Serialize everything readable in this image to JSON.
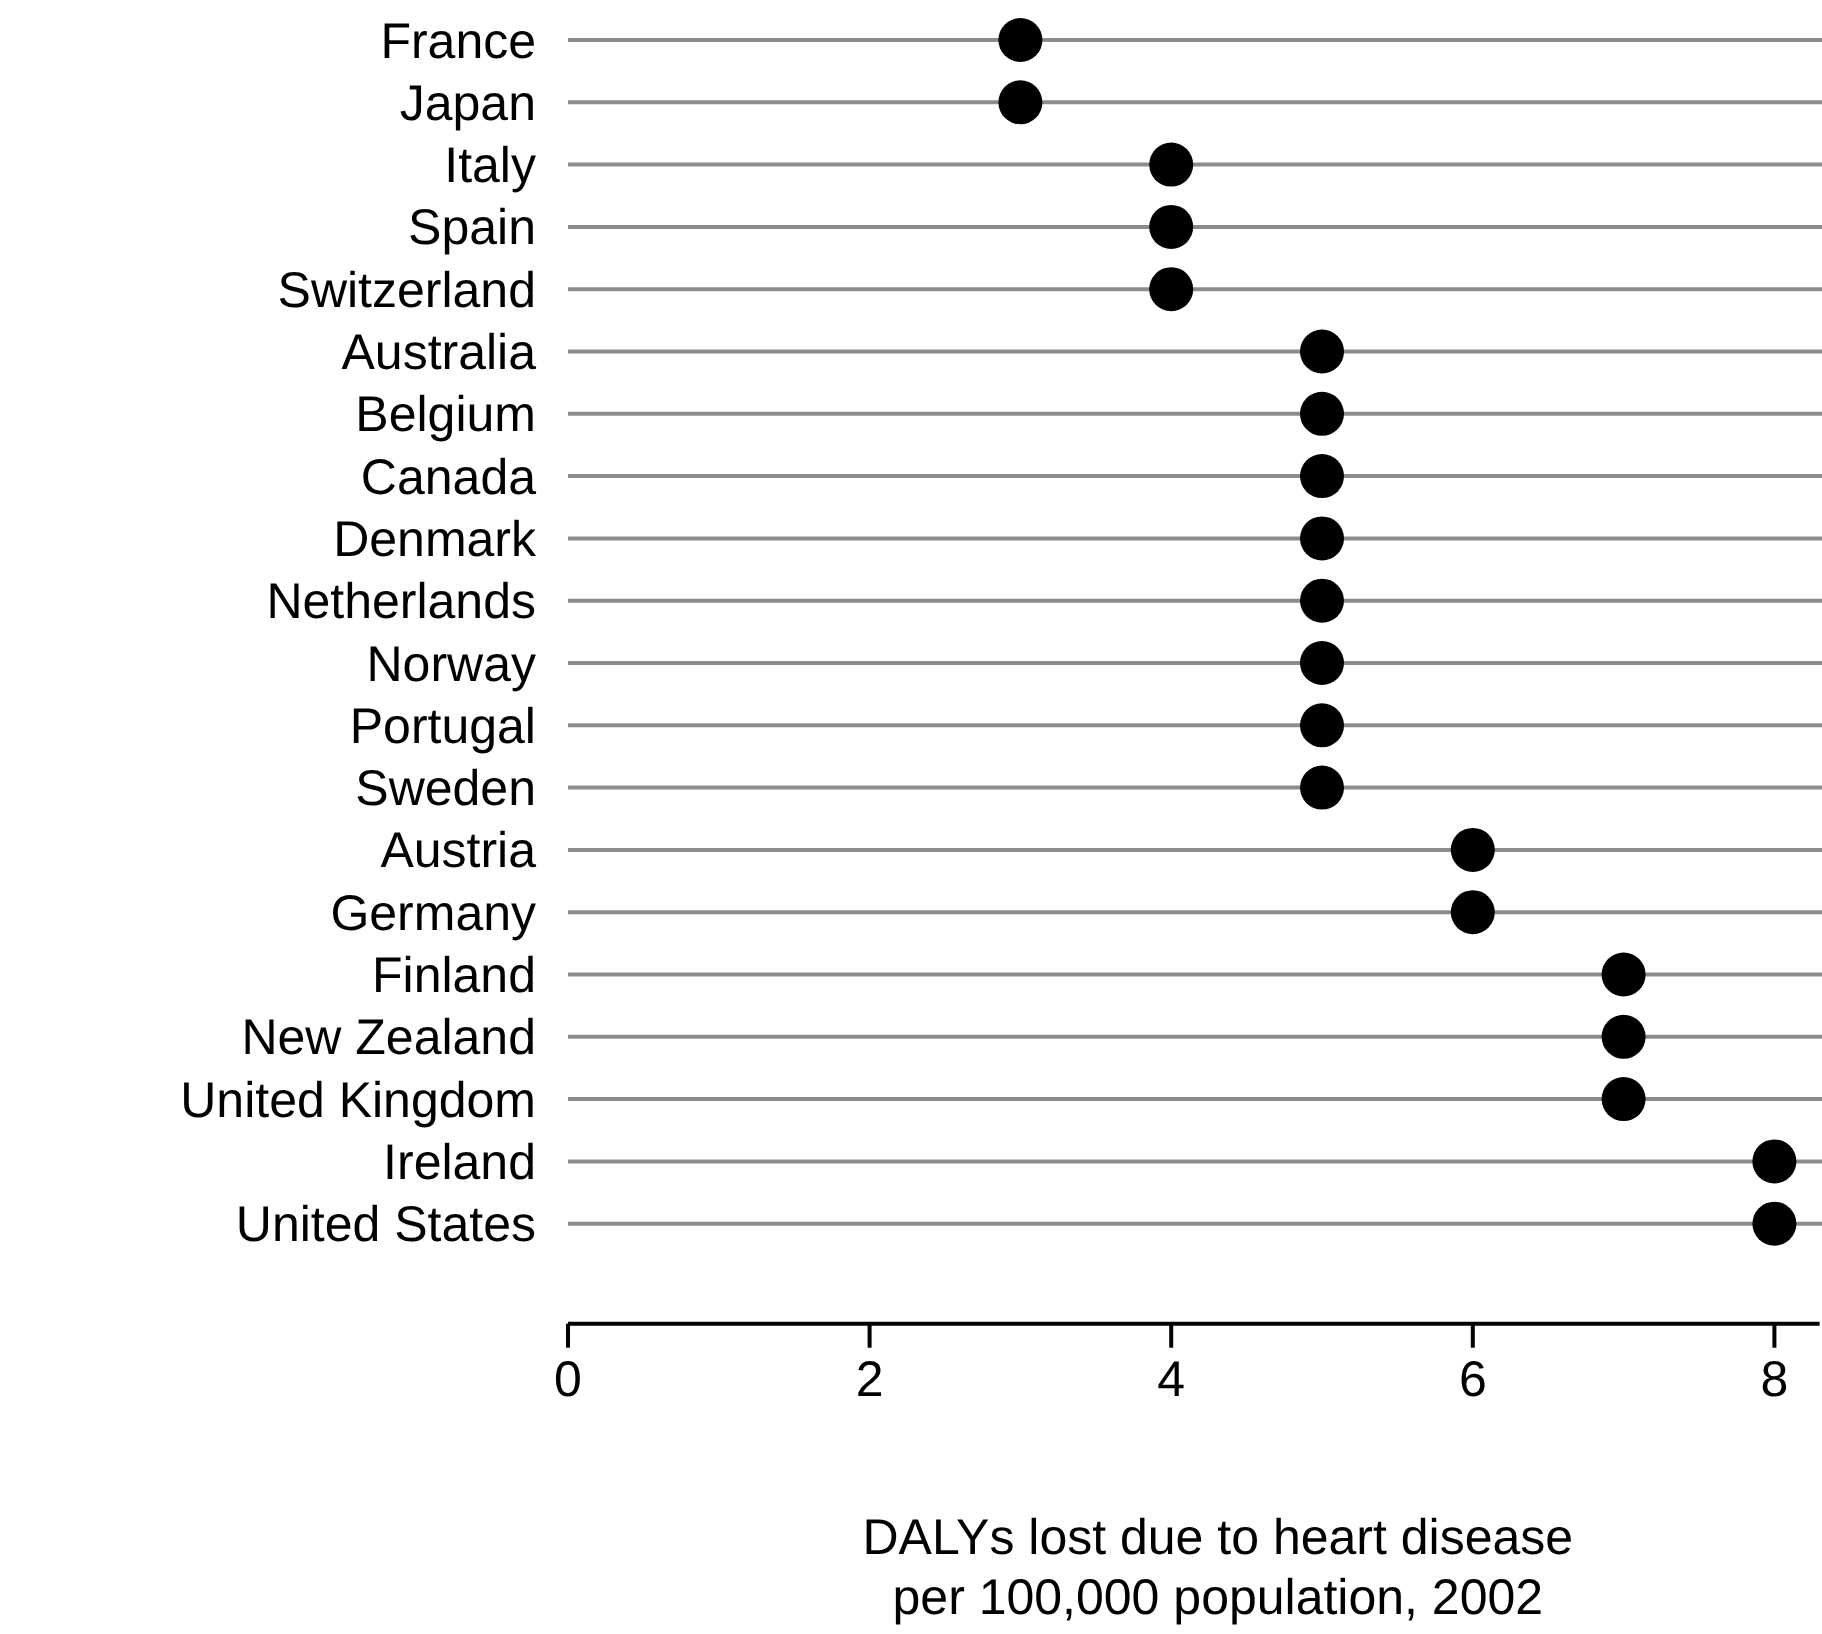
{
  "chart_data": {
    "type": "scatter",
    "orientation": "horizontal",
    "xlabel": "DALYs lost due to heart disease\nper 100,000 population, 2002",
    "categories": [
      "France",
      "Japan",
      "Italy",
      "Spain",
      "Switzerland",
      "Australia",
      "Belgium",
      "Canada",
      "Denmark",
      "Netherlands",
      "Norway",
      "Portugal",
      "Sweden",
      "Austria",
      "Germany",
      "Finland",
      "New Zealand",
      "United Kingdom",
      "Ireland",
      "United States"
    ],
    "values": [
      3,
      3,
      4,
      4,
      4,
      5,
      5,
      5,
      5,
      5,
      5,
      5,
      5,
      6,
      6,
      7,
      7,
      7,
      8,
      8
    ],
    "color": "#000000",
    "marker": "circle",
    "grid": "y",
    "xlim": [
      0,
      8.3
    ],
    "xticks": [
      0,
      2,
      4,
      6,
      8
    ]
  }
}
